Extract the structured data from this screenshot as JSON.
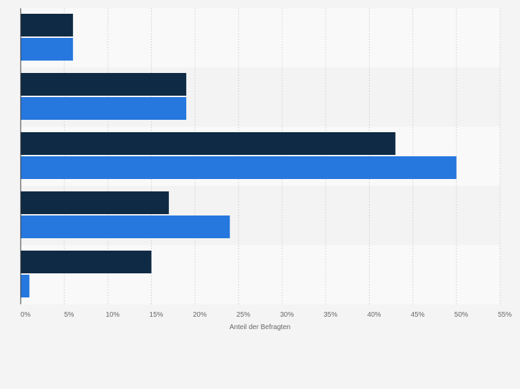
{
  "chart_data": {
    "type": "bar",
    "orientation": "horizontal",
    "categories": [
      "",
      "",
      "",
      "",
      ""
    ],
    "series": [
      {
        "values": [
          6,
          19,
          43,
          17,
          15
        ],
        "color": "#0f2a44"
      },
      {
        "values": [
          6,
          19,
          50,
          24,
          1
        ],
        "color": "#2677de"
      }
    ],
    "xlabel": "Anteil der Befragten",
    "ylabel": "",
    "xlim": [
      0,
      55
    ],
    "xticks": [
      0,
      5,
      10,
      15,
      20,
      25,
      30,
      35,
      40,
      45,
      50,
      55
    ],
    "tick_suffix": "%",
    "grid": true,
    "legend": "none"
  },
  "colors": {
    "background": "#f4f4f4",
    "band_light": "#f9f9f9",
    "band_dark": "#f3f3f3",
    "grid": "#d5d5d5",
    "axis": "#333333",
    "tick_text": "#666666"
  }
}
